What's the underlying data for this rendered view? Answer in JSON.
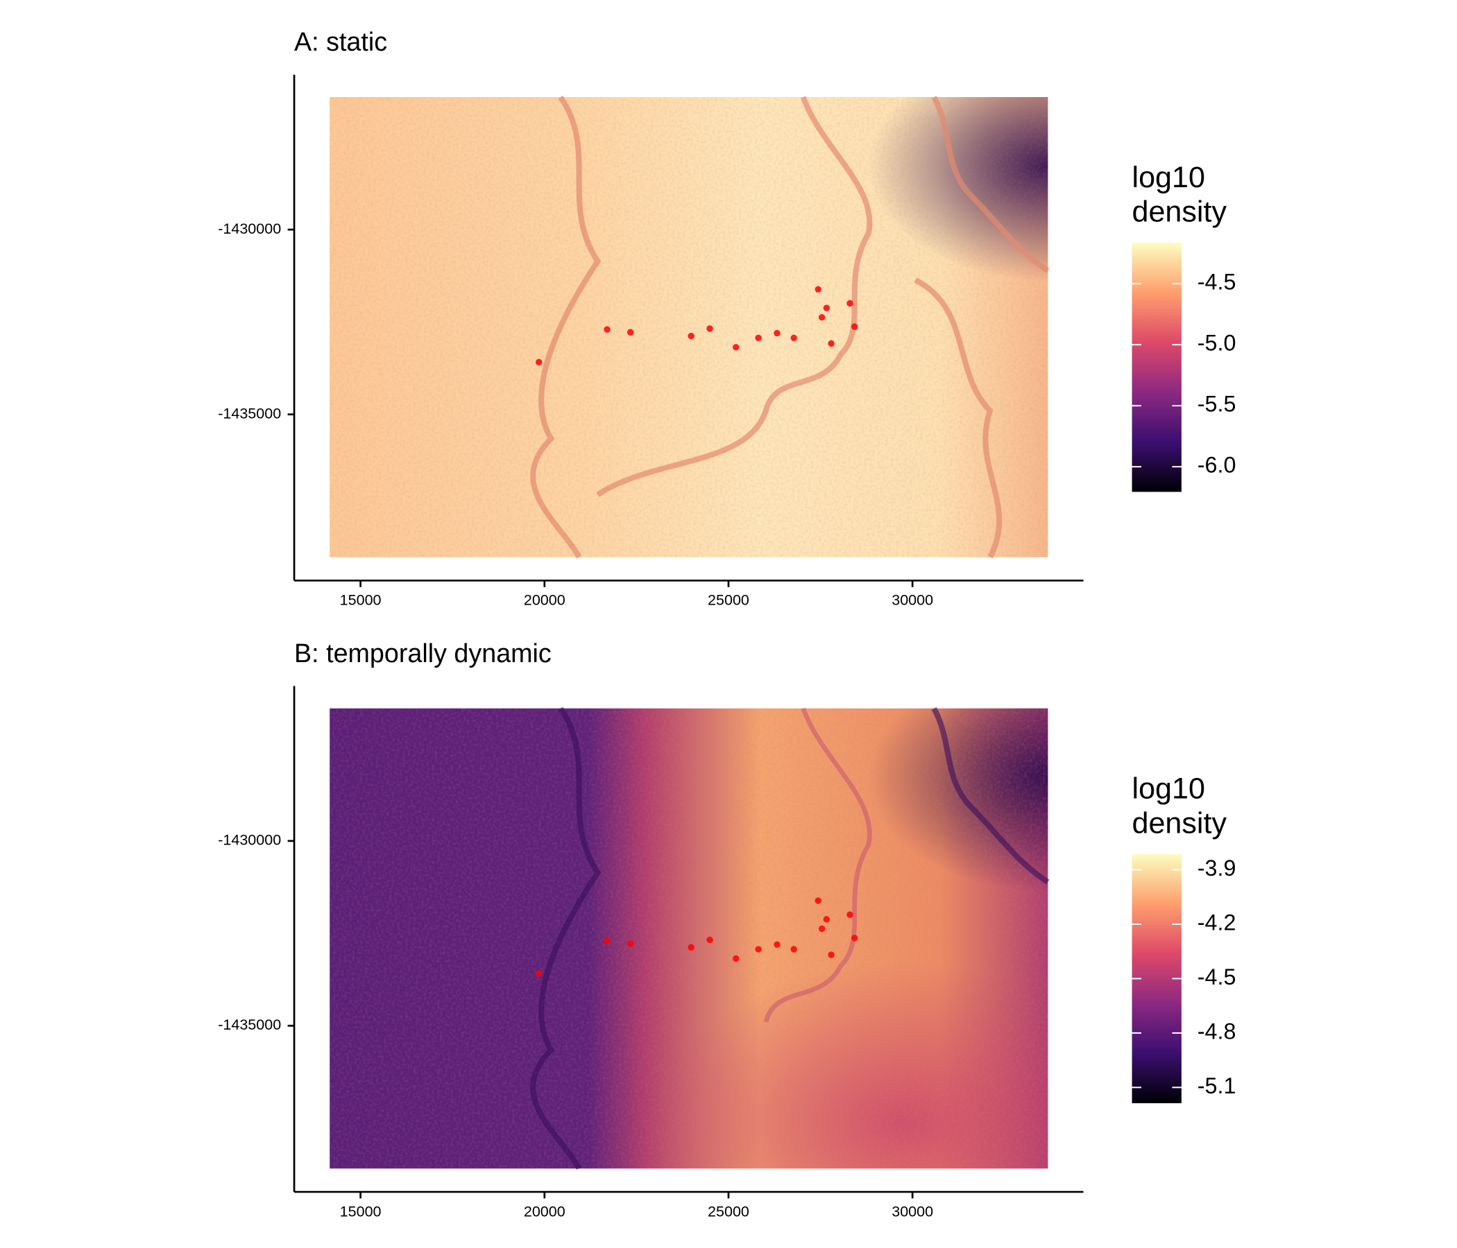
{
  "chart_data": [
    {
      "type": "raster",
      "title": "A: static",
      "xlim": [
        13198,
        34645
      ],
      "xticks": [
        15000,
        20000,
        25000,
        30000
      ],
      "ylim": [
        -1439495,
        -1425808
      ],
      "yticks": [
        -1430000,
        -1435000
      ],
      "legend_title": [
        "log10",
        "density"
      ],
      "clim": [
        -6.206,
        -4.164
      ],
      "cticks": [
        -4.5,
        {
          "value": -5,
          "label": "-5.0"
        },
        -5.5,
        {
          "value": -6,
          "label": "-6.0"
        }
      ],
      "colorscale": [
        "#000004",
        "#3b0f70",
        "#8c2981",
        "#de4968",
        "#fe9f6d",
        "#fcfdbf"
      ],
      "points": {
        "color": "#ff0000",
        "x": [
          19848,
          21701,
          22335,
          24492,
          25203,
          25812,
          26320,
          26777,
          27538,
          27665,
          27792,
          28299,
          28426,
          27437,
          23985
        ],
        "y": [
          -1433586,
          -1432702,
          -1432778,
          -1432677,
          -1433182,
          -1432929,
          -1432803,
          -1432929,
          -1432374,
          -1432121,
          -1433081,
          -1431995,
          -1432626,
          -1431616,
          -1432879
        ]
      }
    },
    {
      "type": "raster",
      "title": "B: temporally dynamic",
      "xlim": [
        13198,
        34645
      ],
      "xticks": [
        15000,
        20000,
        25000,
        30000
      ],
      "ylim": [
        -1439495,
        -1425808
      ],
      "yticks": [
        -1430000,
        -1435000
      ],
      "legend_title": [
        "log10",
        "density"
      ],
      "clim": [
        -5.187,
        -3.813
      ],
      "cticks": [
        -3.9,
        -4.2,
        -4.5,
        -4.8,
        -5.1
      ],
      "colorscale": [
        "#000004",
        "#3b0f70",
        "#8c2981",
        "#de4968",
        "#fe9f6d",
        "#fcfdbf"
      ],
      "points": {
        "color": "#ff0000",
        "x": [
          19848,
          21701,
          22335,
          24492,
          25203,
          25812,
          26320,
          26777,
          27538,
          27665,
          27792,
          28299,
          28426,
          27437,
          23985
        ],
        "y": [
          -1433586,
          -1432702,
          -1432778,
          -1432677,
          -1433182,
          -1432929,
          -1432803,
          -1432929,
          -1432374,
          -1432121,
          -1433081,
          -1431995,
          -1432626,
          -1431616,
          -1432879
        ]
      }
    }
  ]
}
